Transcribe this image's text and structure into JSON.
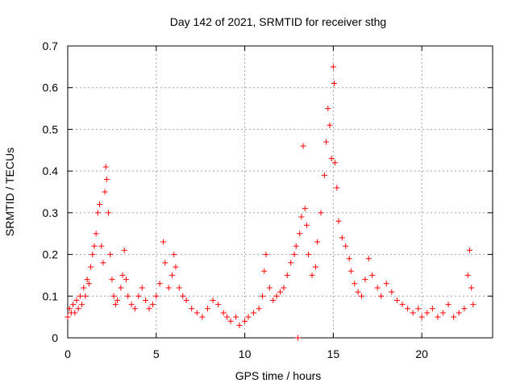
{
  "chart_data": {
    "type": "scatter",
    "title": "Day 142 of 2021, SRMTID for receiver sthg",
    "xlabel": "GPS time / hours",
    "ylabel": "SRMTID / TECUs",
    "xlim": [
      0,
      24
    ],
    "ylim": [
      0,
      0.7
    ],
    "x_ticks": [
      0,
      5,
      10,
      15,
      20
    ],
    "y_ticks": [
      0,
      0.1,
      0.2,
      0.3,
      0.4,
      0.5,
      0.6,
      0.7
    ],
    "x_tick_labels": [
      "0",
      "5",
      "10",
      "15",
      "20"
    ],
    "y_tick_labels": [
      "0",
      "0.1",
      "0.2",
      "0.3",
      "0.4",
      "0.5",
      "0.6",
      "0.7"
    ],
    "grid": true,
    "marker": "+",
    "series": [
      {
        "name": "SRMTID",
        "color": "#ff0000",
        "points": [
          [
            0.0,
            0.05
          ],
          [
            0.1,
            0.07
          ],
          [
            0.2,
            0.06
          ],
          [
            0.3,
            0.08
          ],
          [
            0.4,
            0.06
          ],
          [
            0.5,
            0.09
          ],
          [
            0.6,
            0.07
          ],
          [
            0.7,
            0.1
          ],
          [
            0.8,
            0.08
          ],
          [
            0.9,
            0.12
          ],
          [
            1.0,
            0.1
          ],
          [
            1.1,
            0.14
          ],
          [
            1.2,
            0.13
          ],
          [
            1.3,
            0.17
          ],
          [
            1.4,
            0.2
          ],
          [
            1.5,
            0.22
          ],
          [
            1.6,
            0.25
          ],
          [
            1.7,
            0.3
          ],
          [
            1.8,
            0.32
          ],
          [
            1.9,
            0.22
          ],
          [
            2.0,
            0.18
          ],
          [
            2.1,
            0.35
          ],
          [
            2.15,
            0.41
          ],
          [
            2.2,
            0.38
          ],
          [
            2.3,
            0.3
          ],
          [
            2.4,
            0.2
          ],
          [
            2.5,
            0.14
          ],
          [
            2.6,
            0.1
          ],
          [
            2.7,
            0.08
          ],
          [
            2.8,
            0.09
          ],
          [
            3.0,
            0.12
          ],
          [
            3.1,
            0.15
          ],
          [
            3.2,
            0.21
          ],
          [
            3.3,
            0.14
          ],
          [
            3.4,
            0.1
          ],
          [
            3.6,
            0.08
          ],
          [
            3.8,
            0.07
          ],
          [
            4.0,
            0.1
          ],
          [
            4.2,
            0.12
          ],
          [
            4.4,
            0.09
          ],
          [
            4.6,
            0.07
          ],
          [
            4.8,
            0.08
          ],
          [
            5.0,
            0.1
          ],
          [
            5.2,
            0.13
          ],
          [
            5.4,
            0.23
          ],
          [
            5.5,
            0.18
          ],
          [
            5.7,
            0.12
          ],
          [
            5.9,
            0.15
          ],
          [
            6.0,
            0.2
          ],
          [
            6.1,
            0.17
          ],
          [
            6.3,
            0.12
          ],
          [
            6.5,
            0.1
          ],
          [
            6.7,
            0.09
          ],
          [
            7.0,
            0.07
          ],
          [
            7.3,
            0.06
          ],
          [
            7.6,
            0.05
          ],
          [
            7.9,
            0.07
          ],
          [
            8.2,
            0.09
          ],
          [
            8.5,
            0.08
          ],
          [
            8.8,
            0.06
          ],
          [
            9.0,
            0.05
          ],
          [
            9.2,
            0.04
          ],
          [
            9.5,
            0.05
          ],
          [
            9.7,
            0.03
          ],
          [
            10.0,
            0.04
          ],
          [
            10.2,
            0.05
          ],
          [
            10.5,
            0.06
          ],
          [
            10.8,
            0.07
          ],
          [
            11.0,
            0.1
          ],
          [
            11.1,
            0.16
          ],
          [
            11.2,
            0.2
          ],
          [
            11.4,
            0.12
          ],
          [
            11.6,
            0.09
          ],
          [
            11.8,
            0.1
          ],
          [
            12.0,
            0.11
          ],
          [
            12.2,
            0.12
          ],
          [
            12.4,
            0.15
          ],
          [
            12.6,
            0.18
          ],
          [
            12.8,
            0.2
          ],
          [
            12.9,
            0.22
          ],
          [
            13.0,
            0.0
          ],
          [
            13.1,
            0.25
          ],
          [
            13.2,
            0.29
          ],
          [
            13.3,
            0.46
          ],
          [
            13.4,
            0.31
          ],
          [
            13.5,
            0.27
          ],
          [
            13.6,
            0.2
          ],
          [
            13.8,
            0.15
          ],
          [
            14.0,
            0.17
          ],
          [
            14.1,
            0.23
          ],
          [
            14.3,
            0.3
          ],
          [
            14.5,
            0.39
          ],
          [
            14.6,
            0.47
          ],
          [
            14.7,
            0.55
          ],
          [
            14.8,
            0.51
          ],
          [
            14.9,
            0.43
          ],
          [
            15.0,
            0.65
          ],
          [
            15.05,
            0.61
          ],
          [
            15.1,
            0.42
          ],
          [
            15.2,
            0.36
          ],
          [
            15.3,
            0.28
          ],
          [
            15.5,
            0.24
          ],
          [
            15.7,
            0.22
          ],
          [
            15.9,
            0.19
          ],
          [
            16.0,
            0.16
          ],
          [
            16.2,
            0.13
          ],
          [
            16.4,
            0.11
          ],
          [
            16.6,
            0.1
          ],
          [
            16.8,
            0.14
          ],
          [
            17.0,
            0.19
          ],
          [
            17.2,
            0.15
          ],
          [
            17.5,
            0.12
          ],
          [
            17.7,
            0.1
          ],
          [
            18.0,
            0.13
          ],
          [
            18.3,
            0.11
          ],
          [
            18.6,
            0.09
          ],
          [
            18.9,
            0.08
          ],
          [
            19.2,
            0.07
          ],
          [
            19.5,
            0.06
          ],
          [
            19.8,
            0.07
          ],
          [
            20.0,
            0.05
          ],
          [
            20.3,
            0.06
          ],
          [
            20.6,
            0.07
          ],
          [
            20.9,
            0.05
          ],
          [
            21.2,
            0.06
          ],
          [
            21.5,
            0.08
          ],
          [
            21.8,
            0.05
          ],
          [
            22.1,
            0.06
          ],
          [
            22.4,
            0.07
          ],
          [
            22.6,
            0.15
          ],
          [
            22.7,
            0.21
          ],
          [
            22.8,
            0.12
          ],
          [
            22.9,
            0.08
          ]
        ]
      }
    ]
  }
}
